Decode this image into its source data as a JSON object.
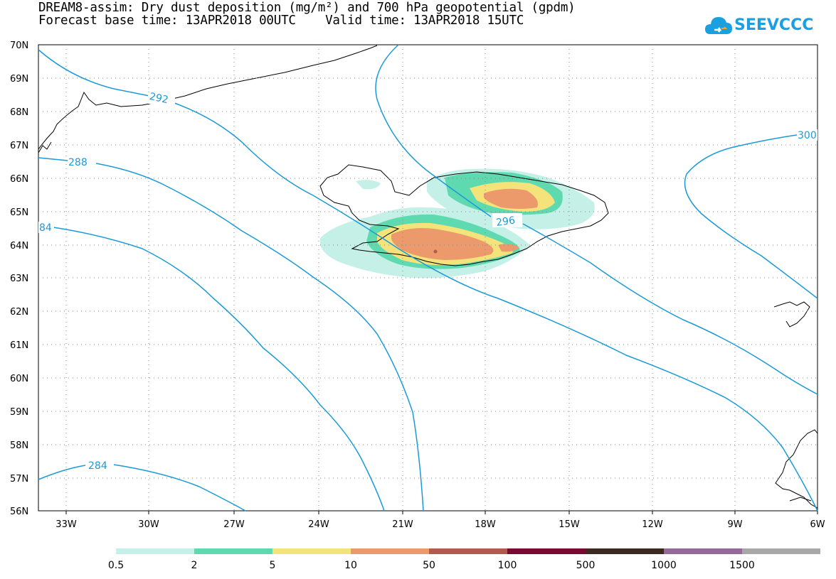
{
  "header": {
    "title_line1": "DREAM8-assim: Dry dust deposition (mg/m²) and 700 hPa geopotential (gpdm)",
    "title_line2": "Forecast base time: 13APR2018 00UTC    Valid time: 13APR2018 15UTC"
  },
  "logo": {
    "text": "SEEVCCC",
    "icon": "cloud-icon",
    "color": "#1aa0e0"
  },
  "map": {
    "lat_labels": [
      "70N",
      "69N",
      "68N",
      "67N",
      "66N",
      "65N",
      "64N",
      "63N",
      "62N",
      "61N",
      "60N",
      "59N",
      "58N",
      "57N",
      "56N"
    ],
    "lon_labels": [
      "33W",
      "30W",
      "27W",
      "24W",
      "21W",
      "18W",
      "15W",
      "12W",
      "9W",
      "6W"
    ],
    "contour_color": "#1a9ad8",
    "contour_labels": {
      "c292": "292",
      "c288": "288",
      "c284a": "84",
      "c284b": "284",
      "c296": "296",
      "c300": "300"
    }
  },
  "legend": {
    "colors": [
      "#c4f0e8",
      "#5ed9b0",
      "#f3e37a",
      "#ec9a6c",
      "#b25a4f",
      "#7a0a32",
      "#3c2a1e",
      "#956a99",
      "#a7a7a7"
    ],
    "labels": [
      "0.5",
      "2",
      "5",
      "10",
      "50",
      "100",
      "500",
      "1000",
      "1500"
    ]
  }
}
